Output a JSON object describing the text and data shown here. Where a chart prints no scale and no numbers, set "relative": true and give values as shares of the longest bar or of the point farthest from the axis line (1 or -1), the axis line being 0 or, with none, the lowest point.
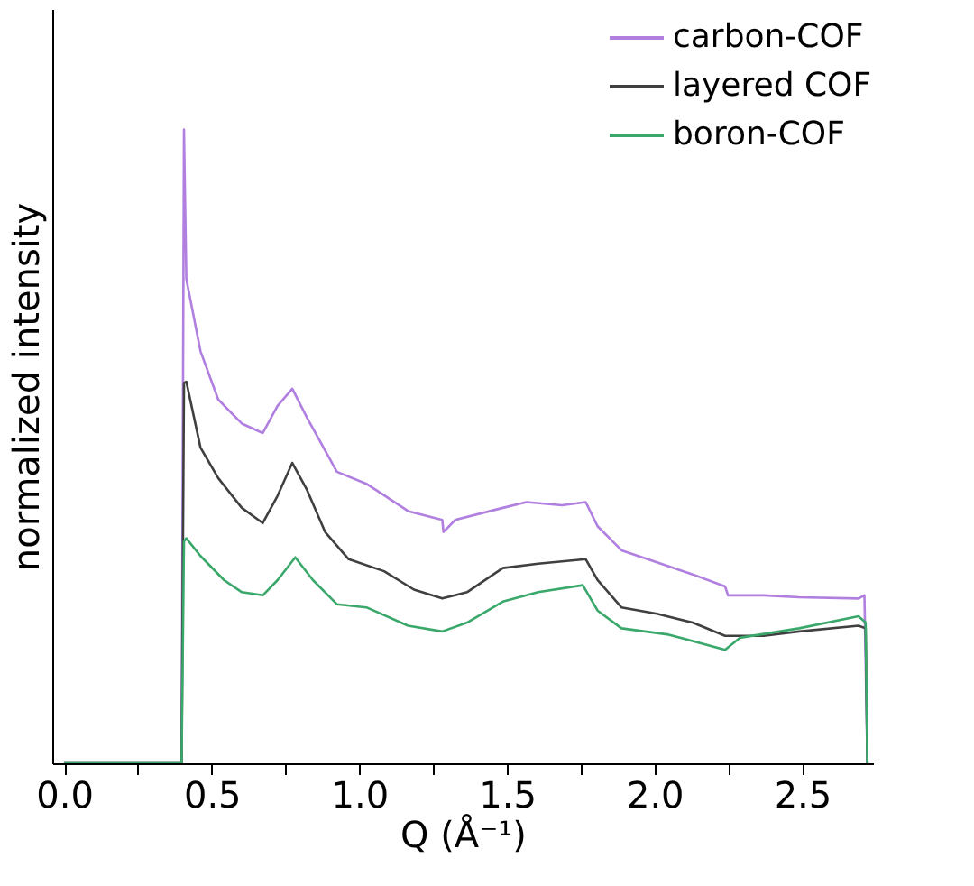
{
  "chart_data": {
    "type": "line",
    "xlabel": "Q (Å⁻¹)",
    "ylabel": "normalized intensity",
    "relative": true,
    "xlim": [
      -0.04,
      2.74
    ],
    "xticks": [
      {
        "value": 0,
        "label": "0.0"
      },
      {
        "value": 0.25,
        "label": null
      },
      {
        "value": 0.5,
        "label": "0.5"
      },
      {
        "value": 0.75,
        "label": null
      },
      {
        "value": 1.0,
        "label": "1.0"
      },
      {
        "value": 1.25,
        "label": null
      },
      {
        "value": 1.5,
        "label": "1.5"
      },
      {
        "value": 1.75,
        "label": null
      },
      {
        "value": 2.0,
        "label": "2.0"
      },
      {
        "value": 2.25,
        "label": null
      },
      {
        "value": 2.5,
        "label": "2.5"
      }
    ],
    "tick_labels": "x",
    "grid": false,
    "legend": "top right",
    "marker": "none",
    "line_style": "solid",
    "series": [
      {
        "name": "carbon-COF",
        "color": "#b07fe0",
        "x": [
          0,
          0.398,
          0.406,
          0.414,
          0.462,
          0.522,
          0.602,
          0.673,
          0.723,
          0.773,
          0.823,
          0.924,
          1.024,
          1.165,
          1.281,
          1.285,
          1.325,
          1.486,
          1.566,
          1.687,
          1.767,
          1.807,
          1.888,
          2.008,
          2.129,
          2.239,
          2.249,
          2.369,
          2.49,
          2.691,
          2.711,
          2.721
        ],
        "values": [
          0,
          0,
          1.0,
          0.764,
          0.65,
          0.574,
          0.536,
          0.521,
          0.564,
          0.591,
          0.545,
          0.46,
          0.441,
          0.398,
          0.384,
          0.365,
          0.384,
          0.403,
          0.412,
          0.407,
          0.412,
          0.374,
          0.336,
          0.317,
          0.298,
          0.279,
          0.265,
          0.265,
          0.262,
          0.26,
          0.265,
          0
        ]
      },
      {
        "name": "layered COF",
        "color": "#404040",
        "x": [
          0,
          0.398,
          0.406,
          0.414,
          0.462,
          0.522,
          0.602,
          0.673,
          0.723,
          0.773,
          0.823,
          0.884,
          0.964,
          1.084,
          1.185,
          1.281,
          1.365,
          1.486,
          1.606,
          1.767,
          1.807,
          1.888,
          2.008,
          2.129,
          2.239,
          2.369,
          2.49,
          2.691,
          2.715,
          2.721
        ],
        "values": [
          0,
          0,
          0.6,
          0.602,
          0.498,
          0.45,
          0.403,
          0.379,
          0.422,
          0.474,
          0.431,
          0.365,
          0.322,
          0.303,
          0.274,
          0.26,
          0.27,
          0.308,
          0.315,
          0.322,
          0.289,
          0.246,
          0.236,
          0.222,
          0.201,
          0.201,
          0.208,
          0.217,
          0.213,
          0
        ]
      },
      {
        "name": "boron-COF",
        "color": "#3aa86b",
        "x": [
          0,
          0.398,
          0.406,
          0.414,
          0.462,
          0.542,
          0.602,
          0.673,
          0.723,
          0.783,
          0.843,
          0.924,
          1.024,
          1.165,
          1.281,
          1.365,
          1.486,
          1.606,
          1.757,
          1.807,
          1.888,
          2.048,
          2.239,
          2.289,
          2.49,
          2.691,
          2.715,
          2.721
        ],
        "values": [
          0,
          0,
          0.35,
          0.355,
          0.327,
          0.289,
          0.27,
          0.265,
          0.289,
          0.325,
          0.289,
          0.251,
          0.246,
          0.217,
          0.208,
          0.222,
          0.255,
          0.27,
          0.281,
          0.241,
          0.213,
          0.203,
          0.179,
          0.198,
          0.213,
          0.232,
          0.222,
          0
        ]
      }
    ]
  }
}
